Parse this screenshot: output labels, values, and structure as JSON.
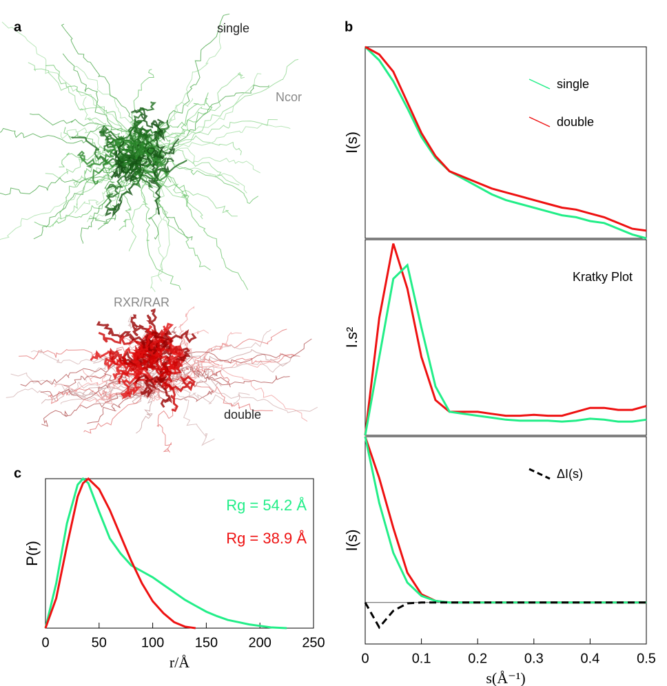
{
  "figure_labels": [
    "a",
    "b",
    "c"
  ],
  "structure_labels": [
    {
      "text": "single",
      "color": "#222222"
    },
    {
      "text": "Ncor",
      "color": "#888888"
    },
    {
      "text": "RXR/RAR",
      "color": "#888888"
    },
    {
      "text": "double",
      "color": "#222222"
    }
  ],
  "chart_data": [
    {
      "type": "line",
      "ylabel": "I(s)",
      "legend": "upper right",
      "x": [
        0,
        0.025,
        0.05,
        0.075,
        0.1,
        0.125,
        0.15,
        0.175,
        0.2,
        0.225,
        0.25,
        0.275,
        0.3,
        0.325,
        0.35,
        0.375,
        0.4,
        0.425,
        0.45,
        0.475,
        0.5
      ],
      "xlim": [
        0,
        0.5
      ],
      "ylim": [
        0,
        1
      ],
      "series": [
        {
          "name": "single",
          "color": "#22ee88",
          "values": [
            1.0,
            0.93,
            0.82,
            0.68,
            0.53,
            0.42,
            0.35,
            0.31,
            0.27,
            0.23,
            0.2,
            0.18,
            0.16,
            0.14,
            0.12,
            0.11,
            0.09,
            0.08,
            0.05,
            0.02,
            0.0
          ]
        },
        {
          "name": "double",
          "color": "#ee1111",
          "values": [
            1.0,
            0.96,
            0.87,
            0.71,
            0.55,
            0.43,
            0.35,
            0.32,
            0.29,
            0.26,
            0.24,
            0.22,
            0.2,
            0.18,
            0.16,
            0.15,
            0.13,
            0.11,
            0.08,
            0.05,
            0.04
          ]
        }
      ]
    },
    {
      "type": "line",
      "ylabel": "I.s²",
      "annotation": "Kratky Plot",
      "x": [
        0,
        0.025,
        0.05,
        0.075,
        0.1,
        0.125,
        0.15,
        0.175,
        0.2,
        0.225,
        0.25,
        0.275,
        0.3,
        0.325,
        0.35,
        0.375,
        0.4,
        0.425,
        0.45,
        0.475,
        0.5
      ],
      "xlim": [
        0,
        0.5
      ],
      "ylim": [
        0,
        1
      ],
      "series": [
        {
          "color": "#ee1111",
          "values": [
            0,
            0.6,
            0.98,
            0.75,
            0.4,
            0.18,
            0.12,
            0.12,
            0.12,
            0.11,
            0.1,
            0.1,
            0.105,
            0.1,
            0.1,
            0.12,
            0.14,
            0.14,
            0.13,
            0.13,
            0.15
          ]
        },
        {
          "color": "#22ee88",
          "values": [
            0,
            0.4,
            0.8,
            0.87,
            0.55,
            0.25,
            0.12,
            0.11,
            0.1,
            0.09,
            0.08,
            0.075,
            0.075,
            0.075,
            0.07,
            0.075,
            0.085,
            0.08,
            0.07,
            0.07,
            0.08
          ]
        }
      ]
    },
    {
      "type": "line",
      "ylabel": "I(s)",
      "xlabel": "s(Å⁻¹)",
      "legend": "upper right",
      "x": [
        0,
        0.025,
        0.05,
        0.075,
        0.1,
        0.125,
        0.15,
        0.175,
        0.2,
        0.225,
        0.25,
        0.275,
        0.3,
        0.325,
        0.35,
        0.375,
        0.4,
        0.425,
        0.45,
        0.475,
        0.5
      ],
      "xlim": [
        0,
        0.5
      ],
      "ylim": [
        -0.25,
        1
      ],
      "xticks": [
        0,
        0.1,
        0.2,
        0.3,
        0.4,
        0.5
      ],
      "series": [
        {
          "color": "#ee1111",
          "values": [
            1,
            0.75,
            0.45,
            0.18,
            0.05,
            0.01,
            0,
            0,
            0,
            0,
            0,
            0,
            0,
            0,
            0,
            0,
            0,
            0,
            0,
            0,
            0
          ]
        },
        {
          "color": "#22ee88",
          "values": [
            1,
            0.6,
            0.3,
            0.12,
            0.04,
            0.01,
            0,
            0,
            0,
            0,
            0,
            0,
            0,
            0,
            0,
            0,
            0,
            0,
            0,
            0,
            0
          ]
        },
        {
          "name": "ΔI(s)",
          "color": "#000000",
          "dashed": true,
          "values": [
            0,
            -0.15,
            -0.05,
            -0.005,
            0,
            0,
            0,
            0,
            0,
            0,
            0,
            0,
            0,
            0,
            0,
            0,
            0,
            0,
            0,
            0,
            0
          ]
        }
      ]
    },
    {
      "type": "line",
      "ylabel": "P(r)",
      "xlabel": "r/Å",
      "x": [
        0,
        10,
        20,
        30,
        35,
        40,
        50,
        60,
        70,
        80,
        90,
        100,
        110,
        120,
        130,
        140,
        150,
        160,
        170,
        180,
        190,
        200,
        210,
        225
      ],
      "xlim": [
        0,
        250
      ],
      "ylim": [
        0,
        1
      ],
      "xticks": [
        0,
        50,
        100,
        150,
        200,
        250
      ],
      "annotations": [
        {
          "text": "Rg = 54.2 Å",
          "color": "#22ee88"
        },
        {
          "text": "Rg = 38.9 Å",
          "color": "#ee1111"
        }
      ],
      "series": [
        {
          "color": "#22ee88",
          "values": [
            0,
            0.3,
            0.7,
            0.96,
            1.0,
            0.97,
            0.78,
            0.6,
            0.5,
            0.42,
            0.38,
            0.34,
            0.29,
            0.24,
            0.19,
            0.15,
            0.11,
            0.08,
            0.055,
            0.04,
            0.025,
            0.015,
            0.005,
            0
          ]
        },
        {
          "color": "#ee1111",
          "values": [
            0,
            0.2,
            0.55,
            0.88,
            0.97,
            1.0,
            0.93,
            0.79,
            0.62,
            0.45,
            0.3,
            0.18,
            0.1,
            0.04,
            0.01,
            0,
            null,
            null,
            null,
            null,
            null,
            null,
            null,
            null
          ]
        }
      ]
    }
  ]
}
